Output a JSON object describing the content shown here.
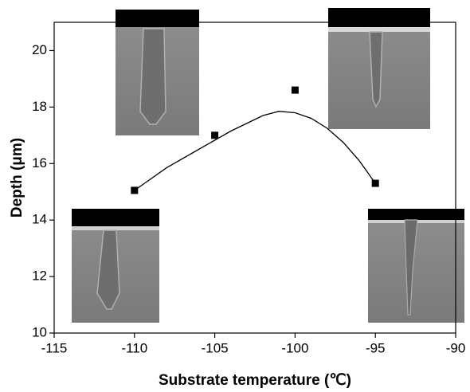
{
  "chart_data": {
    "type": "scatter",
    "x": [
      -110,
      -105,
      -100,
      -95
    ],
    "values": [
      15.05,
      17.0,
      18.6,
      15.3
    ],
    "color": "#000000",
    "fit": {
      "x": [
        -110,
        -108,
        -106,
        -104,
        -102,
        -101,
        -100,
        -99,
        -98,
        -97,
        -96,
        -95
      ],
      "values": [
        15.05,
        15.85,
        16.5,
        17.15,
        17.7,
        17.85,
        17.8,
        17.6,
        17.25,
        16.75,
        16.1,
        15.3
      ],
      "color": "#000000"
    },
    "x_label": "Substrate temperature (℃)",
    "y_label": "Depth  (μm)",
    "xlim": [
      -115,
      -90
    ],
    "xticks": [
      -115,
      -110,
      -105,
      -100,
      -95,
      -90
    ],
    "ylim": [
      10,
      21
    ],
    "yticks": [
      10,
      12,
      14,
      16,
      18,
      20
    ],
    "grid": false
  }
}
